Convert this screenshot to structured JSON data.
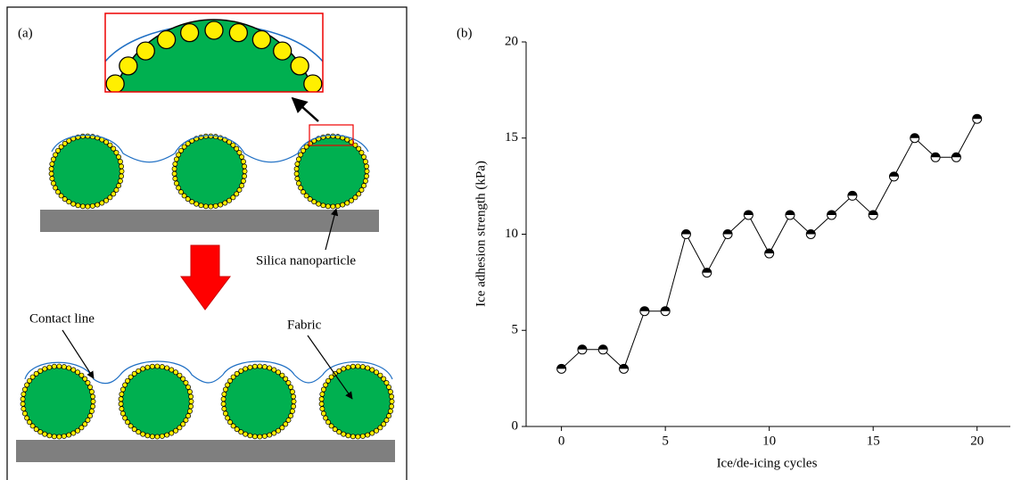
{
  "panel_a": {
    "label": "(a)",
    "silica_label": "Silica nanoparticle",
    "contact_label": "Contact line",
    "fabric_label": "Fabric"
  },
  "chart_data": {
    "type": "line",
    "panel_label": "(b)",
    "x_label": "Ice/de-icing cycles",
    "y_label": "Ice adhesion strength (kPa)",
    "x": [
      0,
      1,
      2,
      3,
      4,
      5,
      6,
      7,
      8,
      9,
      10,
      11,
      12,
      13,
      14,
      15,
      16,
      17,
      18,
      19,
      20
    ],
    "values": [
      3,
      4,
      4,
      3,
      6,
      6,
      10,
      8,
      10,
      11,
      9,
      11,
      10,
      11,
      12,
      11,
      13,
      15,
      14,
      14,
      16
    ],
    "color": "#000000",
    "xlim": [
      -1.7,
      21.6
    ],
    "xticks": [
      0,
      5,
      10,
      15,
      20
    ],
    "ylim": [
      0,
      20
    ],
    "yticks": [
      0,
      5,
      10,
      15,
      20
    ]
  }
}
